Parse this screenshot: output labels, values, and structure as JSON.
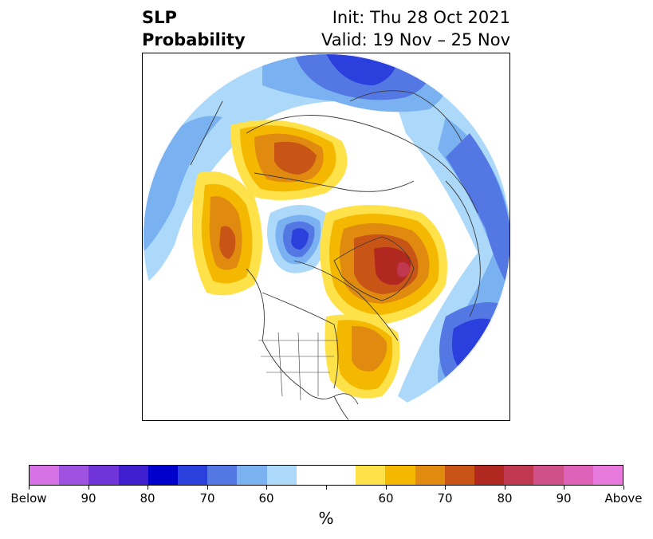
{
  "title": {
    "left_line1": "SLP",
    "left_line2": "Probability",
    "right_line1": "Init: Thu 28 Oct 2021",
    "right_line2": "Valid: 19 Nov – 25 Nov"
  },
  "colorbar": {
    "colors": [
      "#d672e6",
      "#9f52e0",
      "#7034d8",
      "#3e1fd0",
      "#0000cc",
      "#2a3fdb",
      "#5377e3",
      "#7ab1f0",
      "#acd9fa",
      "#ffffff",
      "#ffffff",
      "#ffe24a",
      "#f4b800",
      "#e08a10",
      "#c85516",
      "#b02820",
      "#c03850",
      "#d0508a",
      "#de62b8",
      "#e87ade"
    ],
    "tick_labels": [
      "Below",
      "90",
      "80",
      "70",
      "60",
      "",
      "60",
      "70",
      "80",
      "90",
      "Above"
    ],
    "unit": "%"
  },
  "map": {
    "projection": "north-polar-stereographic",
    "variable": "SLP probability",
    "regions": [
      {
        "name": "north-pacific-positive",
        "category": "above",
        "max_level": "70-75"
      },
      {
        "name": "east-asia-siberia-positive",
        "category": "above",
        "max_level": "70-75"
      },
      {
        "name": "greenland-labrador-positive",
        "category": "above",
        "max_level": "80-85"
      },
      {
        "name": "eastern-north-america-positive",
        "category": "above",
        "max_level": "65-70"
      },
      {
        "name": "alaska-beaufort-negative",
        "category": "below",
        "max_level": "75-80"
      },
      {
        "name": "europe-negative",
        "category": "below",
        "max_level": "70-75"
      },
      {
        "name": "north-atlantic-negative",
        "category": "below",
        "max_level": "75-80"
      }
    ]
  }
}
